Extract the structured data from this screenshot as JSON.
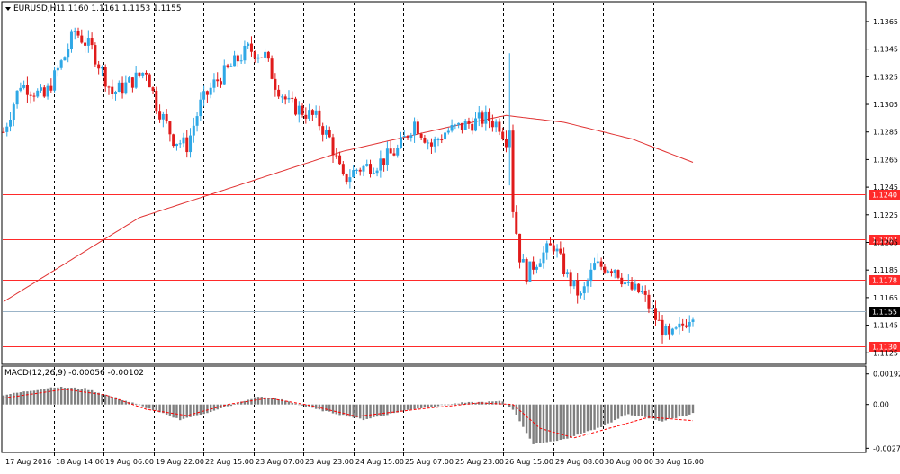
{
  "header": {
    "symbol_label": "EURUSD,H1",
    "ohlc_label": "1.1160 1.1161 1.1153 1.1155"
  },
  "colors": {
    "bull": "#2fa8e6",
    "bear": "#e01b1b",
    "level_line": "#ff2a2a",
    "ma_line": "#e03232",
    "grid": "#000000",
    "current_price_line": "#9bb4c8",
    "current_price_badge": "#000000",
    "level_badge": "#ff2a2a",
    "macd_hist": "#7f7f7f",
    "macd_signal": "#ff0000"
  },
  "chart_data": [
    {
      "type": "candlestick",
      "symbol": "EURUSD",
      "timeframe": "H1",
      "ylim": [
        1.1118,
        1.1378
      ],
      "y_ticks": [
        1.1365,
        1.1345,
        1.1325,
        1.1305,
        1.1285,
        1.1265,
        1.1245,
        1.1225,
        1.1205,
        1.1185,
        1.1165,
        1.1145,
        1.1125
      ],
      "y_tick_labels": [
        "1.1365",
        "1.1345",
        "1.1325",
        "1.1305",
        "1.1285",
        "1.1265",
        "1.1245",
        "1.1225",
        "1.1205",
        "1.1185",
        "1.1165",
        "1.1145",
        "1.1125"
      ],
      "x_labels": [
        "17 Aug 2016",
        "18 Aug 14:00",
        "19 Aug 06:00",
        "19 Aug 22:00",
        "22 Aug 15:00",
        "23 Aug 07:00",
        "23 Aug 23:00",
        "24 Aug 15:00",
        "25 Aug 07:00",
        "25 Aug 23:00",
        "26 Aug 15:00",
        "29 Aug 08:00",
        "30 Aug 00:00",
        "30 Aug 16:00"
      ],
      "price_path_anchors": [
        {
          "bar": 0,
          "price": 1.1285
        },
        {
          "bar": 5,
          "price": 1.132
        },
        {
          "bar": 12,
          "price": 1.131
        },
        {
          "bar": 18,
          "price": 1.134
        },
        {
          "bar": 21,
          "price": 1.1358
        },
        {
          "bar": 26,
          "price": 1.1345
        },
        {
          "bar": 32,
          "price": 1.1313
        },
        {
          "bar": 38,
          "price": 1.1322
        },
        {
          "bar": 42,
          "price": 1.133
        },
        {
          "bar": 45,
          "price": 1.1305
        },
        {
          "bar": 50,
          "price": 1.128
        },
        {
          "bar": 54,
          "price": 1.1275
        },
        {
          "bar": 58,
          "price": 1.1305
        },
        {
          "bar": 62,
          "price": 1.132
        },
        {
          "bar": 66,
          "price": 1.133
        },
        {
          "bar": 72,
          "price": 1.1345
        },
        {
          "bar": 77,
          "price": 1.134
        },
        {
          "bar": 80,
          "price": 1.132
        },
        {
          "bar": 84,
          "price": 1.1305
        },
        {
          "bar": 88,
          "price": 1.13
        },
        {
          "bar": 92,
          "price": 1.1295
        },
        {
          "bar": 96,
          "price": 1.128
        },
        {
          "bar": 100,
          "price": 1.125
        },
        {
          "bar": 104,
          "price": 1.1258
        },
        {
          "bar": 110,
          "price": 1.1262
        },
        {
          "bar": 116,
          "price": 1.1272
        },
        {
          "bar": 121,
          "price": 1.1292
        },
        {
          "bar": 126,
          "price": 1.1275
        },
        {
          "bar": 130,
          "price": 1.1285
        },
        {
          "bar": 136,
          "price": 1.129
        },
        {
          "bar": 142,
          "price": 1.1295
        },
        {
          "bar": 146,
          "price": 1.129
        },
        {
          "bar": 148,
          "price": 1.128
        },
        {
          "bar": 150,
          "price": 1.123
        },
        {
          "bar": 152,
          "price": 1.1195
        },
        {
          "bar": 154,
          "price": 1.1182
        },
        {
          "bar": 158,
          "price": 1.1195
        },
        {
          "bar": 162,
          "price": 1.1203
        },
        {
          "bar": 166,
          "price": 1.118
        },
        {
          "bar": 170,
          "price": 1.1165
        },
        {
          "bar": 174,
          "price": 1.1188
        },
        {
          "bar": 180,
          "price": 1.1187
        },
        {
          "bar": 184,
          "price": 1.1172
        },
        {
          "bar": 188,
          "price": 1.1168
        },
        {
          "bar": 192,
          "price": 1.115
        },
        {
          "bar": 196,
          "price": 1.1135
        },
        {
          "bar": 199,
          "price": 1.1142
        },
        {
          "bar": 203,
          "price": 1.1155
        }
      ],
      "spike": {
        "bar": 149,
        "high": 1.1342,
        "low": 1.1285
      },
      "moving_average": [
        {
          "bar": 0,
          "value": 1.1162
        },
        {
          "bar": 40,
          "value": 1.1223
        },
        {
          "bar": 70,
          "value": 1.1247
        },
        {
          "bar": 100,
          "value": 1.1271
        },
        {
          "bar": 130,
          "value": 1.1288
        },
        {
          "bar": 148,
          "value": 1.1297
        },
        {
          "bar": 165,
          "value": 1.1292
        },
        {
          "bar": 185,
          "value": 1.128
        },
        {
          "bar": 203,
          "value": 1.1263
        }
      ],
      "horizontal_levels": [
        {
          "price": 1.124,
          "label": "1.1240"
        },
        {
          "price": 1.1207,
          "label": "1.1207"
        },
        {
          "price": 1.1178,
          "label": "1.1178"
        },
        {
          "price": 1.113,
          "label": "1.1130"
        }
      ],
      "current_price": {
        "price": 1.1155,
        "label": "1.1155"
      }
    },
    {
      "type": "macd",
      "title": "MACD(12,26,9) -0.00056 -0.00102",
      "ylim": [
        -0.0029,
        0.0023
      ],
      "y_ticks": [
        0.00192,
        0.0,
        -0.00275
      ],
      "y_tick_labels": [
        "0.00192",
        "0.00",
        "-0.00275"
      ],
      "histogram_anchors": [
        {
          "bar": 0,
          "value": 0.0006
        },
        {
          "bar": 15,
          "value": 0.0011
        },
        {
          "bar": 24,
          "value": 0.001
        },
        {
          "bar": 38,
          "value": 0.0001
        },
        {
          "bar": 52,
          "value": -0.00095
        },
        {
          "bar": 62,
          "value": -0.0004
        },
        {
          "bar": 75,
          "value": 0.0005
        },
        {
          "bar": 82,
          "value": 0.0003
        },
        {
          "bar": 92,
          "value": -0.0003
        },
        {
          "bar": 106,
          "value": -0.00095
        },
        {
          "bar": 120,
          "value": -0.0003
        },
        {
          "bar": 135,
          "value": 0.0001
        },
        {
          "bar": 147,
          "value": 0.0002
        },
        {
          "bar": 150,
          "value": -0.0003
        },
        {
          "bar": 156,
          "value": -0.0025
        },
        {
          "bar": 166,
          "value": -0.00215
        },
        {
          "bar": 176,
          "value": -0.0014
        },
        {
          "bar": 184,
          "value": -0.0006
        },
        {
          "bar": 194,
          "value": -0.00105
        },
        {
          "bar": 203,
          "value": -0.00056
        }
      ],
      "signal_anchors": [
        {
          "bar": 0,
          "value": 0.0004
        },
        {
          "bar": 18,
          "value": 0.00095
        },
        {
          "bar": 30,
          "value": 0.0006
        },
        {
          "bar": 42,
          "value": -0.0003
        },
        {
          "bar": 54,
          "value": -0.0007
        },
        {
          "bar": 66,
          "value": 0.0
        },
        {
          "bar": 78,
          "value": 0.0004
        },
        {
          "bar": 90,
          "value": -5e-05
        },
        {
          "bar": 104,
          "value": -0.00075
        },
        {
          "bar": 122,
          "value": -0.0003
        },
        {
          "bar": 140,
          "value": 0.0001
        },
        {
          "bar": 150,
          "value": 0.0
        },
        {
          "bar": 158,
          "value": -0.0015
        },
        {
          "bar": 168,
          "value": -0.0021
        },
        {
          "bar": 180,
          "value": -0.0014
        },
        {
          "bar": 190,
          "value": -0.0008
        },
        {
          "bar": 203,
          "value": -0.00102
        }
      ]
    }
  ]
}
